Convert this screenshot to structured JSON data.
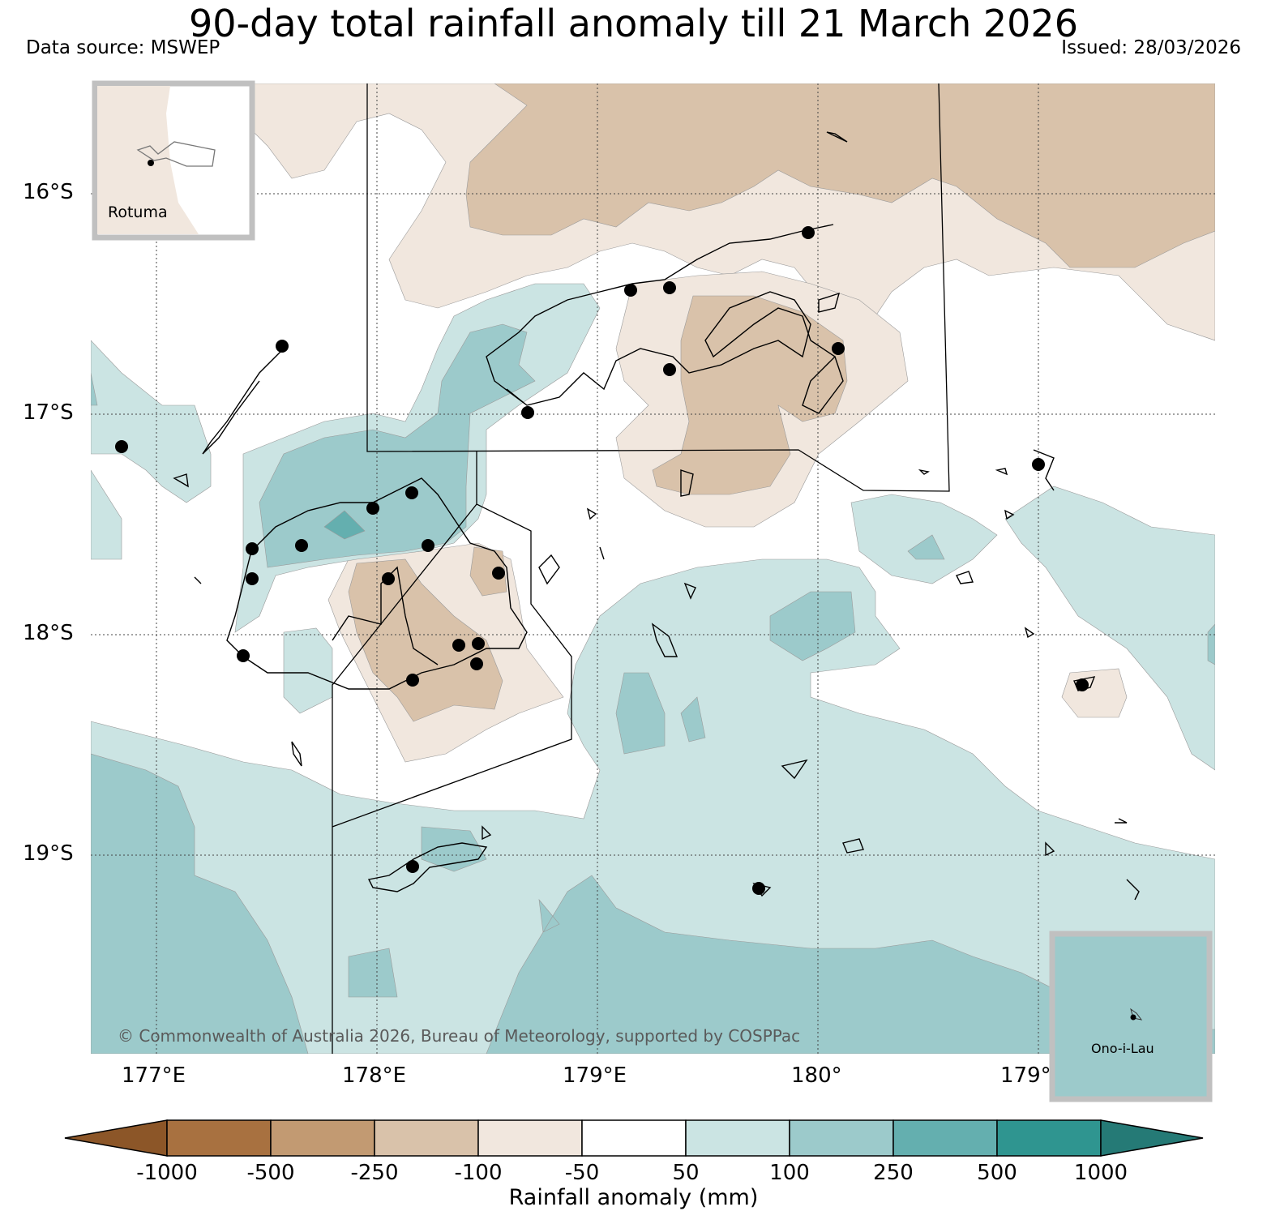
{
  "header": {
    "title": "90-day total rainfall anomaly till 21 March 2026",
    "source": "Data source: MSWEP",
    "issued": "Issued: 28/03/2026"
  },
  "map": {
    "lat_labels": [
      "16°S",
      "17°S",
      "18°S",
      "19°S"
    ],
    "lon_labels": [
      "177°E",
      "178°E",
      "179°E",
      "180°",
      "179°"
    ],
    "copyright": "© Commonwealth of Australia 2026, Bureau of Meteorology, supported by COSPPac",
    "inset_rotuma": "Rotuma",
    "inset_onoilau": "Ono-i-Lau"
  },
  "legend": {
    "label": "Rainfall anomaly (mm)",
    "ticks": [
      "-1000",
      "-500",
      "-250",
      "-100",
      "-50",
      "50",
      "100",
      "250",
      "500",
      "1000"
    ],
    "colors": {
      "below_min": "#8c5628",
      "c1": "#a87140",
      "c2": "#c29a72",
      "c3": "#d9c2aa",
      "c4": "#f1e7de",
      "c5": "#ffffff",
      "c6": "#cbe4e3",
      "c7": "#9ccacb",
      "c8": "#64afaf",
      "c9": "#2f9590",
      "above_max": "#257a76"
    }
  }
}
